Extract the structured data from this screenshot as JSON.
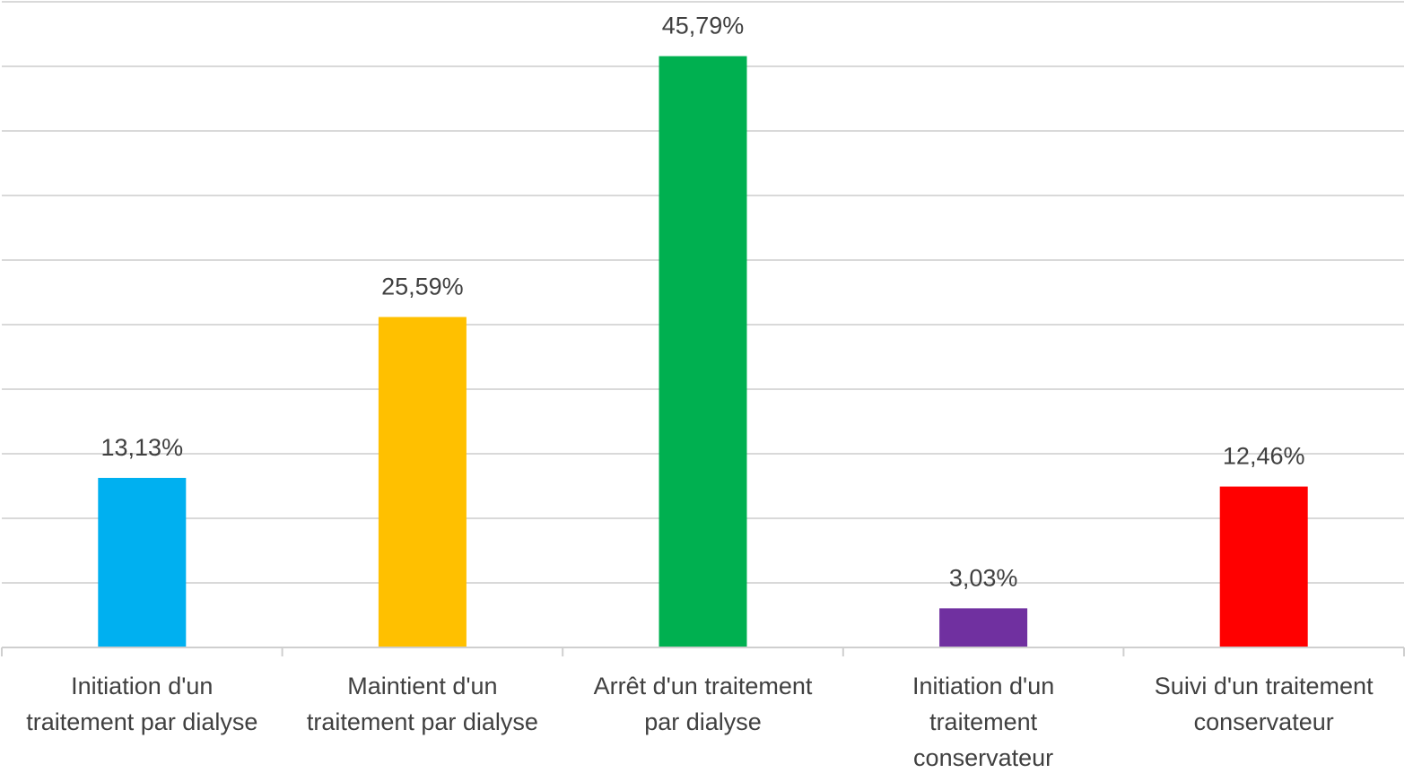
{
  "chart_data": {
    "type": "bar",
    "title": "",
    "xlabel": "",
    "ylabel": "",
    "ylim": [
      0,
      50
    ],
    "grid": true,
    "legend": "none",
    "categories": [
      [
        "Initiation d'un",
        "traitement par dialyse"
      ],
      [
        "Maintient d'un",
        "traitement par dialyse"
      ],
      [
        "Arrêt d'un traitement",
        "par dialyse"
      ],
      [
        "Initiation d'un",
        "traitement",
        "conservateur"
      ],
      [
        "Suivi d'un traitement",
        "conservateur"
      ]
    ],
    "values": [
      13.13,
      25.59,
      45.79,
      3.03,
      12.46
    ],
    "data_labels": [
      "13,13%",
      "25,59%",
      "45,79%",
      "3,03%",
      "12,46%"
    ],
    "colors": [
      "#00b0f0",
      "#ffc000",
      "#00b050",
      "#7030a0",
      "#ff0000"
    ]
  }
}
